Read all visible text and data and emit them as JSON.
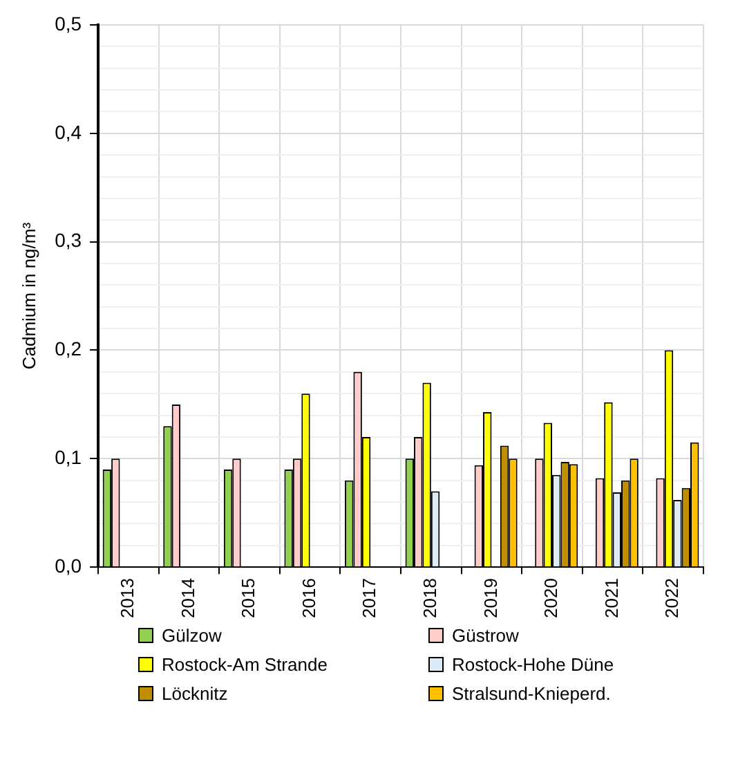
{
  "chart_data": {
    "type": "bar",
    "ylabel": "Cadmium in ng/m³",
    "categories": [
      "2013",
      "2014",
      "2015",
      "2016",
      "2017",
      "2018",
      "2019",
      "2020",
      "2021",
      "2022"
    ],
    "series": [
      {
        "name": "Gülzow",
        "color": "#92d050",
        "values": [
          0.09,
          0.13,
          0.09,
          0.09,
          0.08,
          0.1,
          null,
          null,
          null,
          null
        ]
      },
      {
        "name": "Güstrow",
        "color": "#ffcccc",
        "values": [
          0.1,
          0.15,
          0.1,
          0.1,
          0.18,
          0.12,
          0.094,
          0.1,
          0.082,
          0.082
        ]
      },
      {
        "name": "Rostock-Am Strande",
        "color": "#ffff00",
        "values": [
          null,
          null,
          null,
          0.16,
          0.12,
          0.17,
          0.143,
          0.133,
          0.152,
          0.2
        ]
      },
      {
        "name": "Rostock-Hohe Düne",
        "color": "#ddebf7",
        "values": [
          null,
          null,
          null,
          null,
          null,
          0.07,
          null,
          0.085,
          0.069,
          0.062
        ]
      },
      {
        "name": "Löcknitz",
        "color": "#bf8f00",
        "values": [
          null,
          null,
          null,
          null,
          null,
          null,
          0.112,
          0.097,
          0.08,
          0.073
        ]
      },
      {
        "name": "Stralsund-Knieperd.",
        "color": "#ffc000",
        "values": [
          null,
          null,
          null,
          null,
          null,
          null,
          0.1,
          0.095,
          0.1,
          0.115
        ]
      }
    ],
    "ylim": [
      0,
      0.5
    ],
    "yticks": [
      {
        "value": 0,
        "label": "0,0"
      },
      {
        "value": 0.02,
        "label": null
      },
      {
        "value": 0.04,
        "label": null
      },
      {
        "value": 0.06,
        "label": null
      },
      {
        "value": 0.08,
        "label": null
      },
      {
        "value": 0.1,
        "label": "0,1"
      },
      {
        "value": 0.12,
        "label": null
      },
      {
        "value": 0.14,
        "label": null
      },
      {
        "value": 0.16,
        "label": null
      },
      {
        "value": 0.18,
        "label": null
      },
      {
        "value": 0.2,
        "label": "0,2"
      },
      {
        "value": 0.22,
        "label": null
      },
      {
        "value": 0.24,
        "label": null
      },
      {
        "value": 0.26,
        "label": null
      },
      {
        "value": 0.28,
        "label": null
      },
      {
        "value": 0.3,
        "label": "0,3"
      },
      {
        "value": 0.32,
        "label": null
      },
      {
        "value": 0.34,
        "label": null
      },
      {
        "value": 0.36,
        "label": null
      },
      {
        "value": 0.38,
        "label": null
      },
      {
        "value": 0.4,
        "label": "0,4"
      },
      {
        "value": 0.42,
        "label": null
      },
      {
        "value": 0.44,
        "label": null
      },
      {
        "value": 0.46,
        "label": null
      },
      {
        "value": 0.48,
        "label": null
      },
      {
        "value": 0.5,
        "label": "0,5"
      }
    ],
    "grid": true,
    "legend": "bottom"
  }
}
